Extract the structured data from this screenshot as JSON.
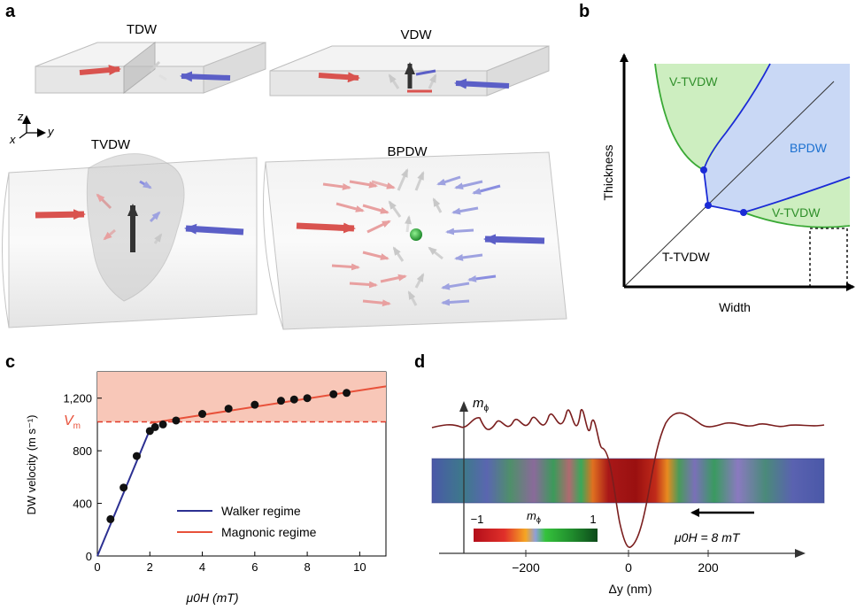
{
  "panels": {
    "a": {
      "letter": "a",
      "wall_labels": [
        "TDW",
        "VDW",
        "TVDW",
        "BPDW"
      ],
      "axes_labels": {
        "z": "z",
        "x": "x",
        "y": "y"
      }
    },
    "b": {
      "letter": "b",
      "xlabel": "Width",
      "ylabel": "Thickness",
      "region_labels": [
        "V-TVDW",
        "BPDW",
        "V-TVDW",
        "T-TVDW"
      ],
      "colors": {
        "v_tvdw": "#cdeec0",
        "bpdw": "#c9d8f5",
        "boundary_green": "#3aa935",
        "boundary_blue": "#1b2bd6",
        "bpdw_text": "#1a6fd0",
        "v_text": "#2f8f2a"
      }
    },
    "c": {
      "letter": "c",
      "ylabel": "DW velocity (m s⁻¹)",
      "xlabel": "μ0H (mT)",
      "vm_label": "V",
      "vm_sub": "m",
      "legend": [
        "Walker regime",
        "Magnonic regime"
      ],
      "colors": {
        "walker": "#2c3092",
        "magnonic": "#e8513a",
        "shade": "#f8c7b8",
        "vm_line": "#e03a2a"
      }
    },
    "d": {
      "letter": "d",
      "ylabel": "m",
      "ylabel_sub": "ϕ",
      "xlabel": "Δy (nm)",
      "xticks": [
        "−200",
        "0",
        "200"
      ],
      "colorbar_label": "m",
      "colorbar_sub": "ϕ",
      "colorbar_min": "−1",
      "colorbar_max": "1",
      "field_label": "μ0H = 8 mT",
      "colors": {
        "curve": "#7a1e1e"
      }
    }
  },
  "chart_data": {
    "type": "line",
    "title": "",
    "xlabel": "μ0H (mT)",
    "ylabel": "DW velocity (m s⁻¹)",
    "xlim": [
      0,
      11
    ],
    "ylim": [
      0,
      1400
    ],
    "xticks": [
      0,
      2,
      4,
      6,
      8,
      10
    ],
    "yticks": [
      0,
      400,
      800,
      1200
    ],
    "vm": 1020,
    "legend_placement": "bottom-right",
    "grid": false,
    "series": [
      {
        "name": "Walker regime",
        "x": [
          0,
          2
        ],
        "y": [
          0,
          960
        ]
      },
      {
        "name": "Magnonic regime",
        "x": [
          2,
          11
        ],
        "y": [
          1010,
          1290
        ]
      }
    ],
    "points": {
      "x": [
        0.5,
        1,
        1.5,
        2,
        2.2,
        2.5,
        3,
        4,
        5,
        6,
        7,
        7.5,
        8,
        9,
        9.5
      ],
      "y": [
        280,
        520,
        760,
        950,
        980,
        1000,
        1030,
        1080,
        1120,
        1150,
        1180,
        1190,
        1200,
        1230,
        1240
      ]
    }
  }
}
